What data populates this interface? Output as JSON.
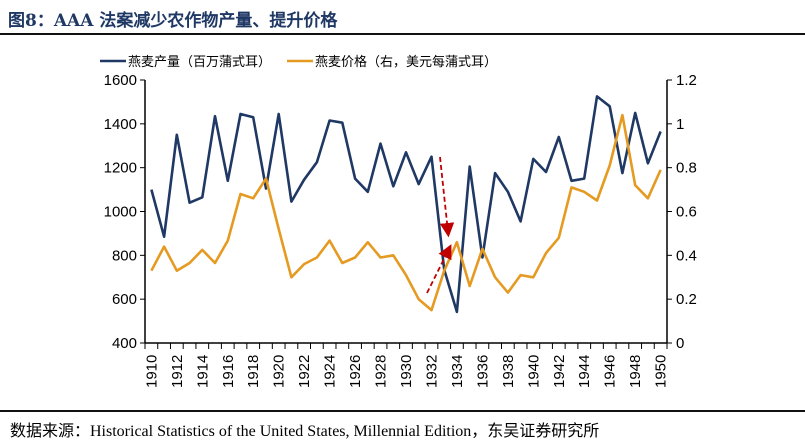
{
  "title": "图8：AAA 法案减少农作物产量、提升价格",
  "source": "数据来源：Historical Statistics of the United States, Millennial Edition，东吴证券研究所",
  "chart_data": {
    "type": "line",
    "x": [
      1910,
      1911,
      1912,
      1913,
      1914,
      1915,
      1916,
      1917,
      1918,
      1919,
      1920,
      1921,
      1922,
      1923,
      1924,
      1925,
      1926,
      1927,
      1928,
      1929,
      1930,
      1931,
      1932,
      1933,
      1934,
      1935,
      1936,
      1937,
      1938,
      1939,
      1940,
      1941,
      1942,
      1943,
      1944,
      1945,
      1946,
      1947,
      1948,
      1949,
      1950
    ],
    "x_tick_labels": [
      "1910",
      "1912",
      "1914",
      "1916",
      "1918",
      "1920",
      "1922",
      "1924",
      "1926",
      "1928",
      "1930",
      "1932",
      "1934",
      "1936",
      "1938",
      "1940",
      "1942",
      "1944",
      "1946",
      "1948",
      "1950"
    ],
    "y_left": {
      "range": [
        400,
        1600
      ],
      "ticks": [
        "400",
        "600",
        "800",
        "1000",
        "1200",
        "1400",
        "1600"
      ]
    },
    "y_right": {
      "range": [
        0,
        1.2
      ],
      "ticks": [
        "0",
        "0.2",
        "0.4",
        "0.6",
        "0.8",
        "1",
        "1.2"
      ]
    },
    "grid": false,
    "legend_position": "top",
    "series": [
      {
        "name": "燕麦产量（百万蒲式耳）",
        "axis": "left",
        "color": "#1f3864",
        "values": [
          1100,
          885,
          1350,
          1040,
          1065,
          1435,
          1140,
          1445,
          1430,
          1105,
          1445,
          1045,
          1145,
          1225,
          1415,
          1405,
          1150,
          1090,
          1310,
          1115,
          1270,
          1125,
          1250,
          735,
          542,
          1205,
          790,
          1175,
          1090,
          955,
          1240,
          1180,
          1340,
          1140,
          1150,
          1525,
          1480,
          1175,
          1450,
          1220,
          1365
        ]
      },
      {
        "name": "燕麦价格（右，美元每蒲式耳）",
        "axis": "right",
        "color": "#e59a22",
        "values": [
          0.33,
          0.44,
          0.33,
          0.365,
          0.425,
          0.365,
          0.467,
          0.68,
          0.66,
          0.75,
          0.52,
          0.3,
          0.36,
          0.39,
          0.467,
          0.365,
          0.39,
          0.46,
          0.39,
          0.4,
          0.31,
          0.2,
          0.15,
          0.33,
          0.46,
          0.26,
          0.43,
          0.3,
          0.23,
          0.31,
          0.3,
          0.41,
          0.48,
          0.71,
          0.69,
          0.65,
          0.81,
          1.04,
          0.72,
          0.66,
          0.79
        ]
      }
    ],
    "annotations_color": "#c00000"
  }
}
